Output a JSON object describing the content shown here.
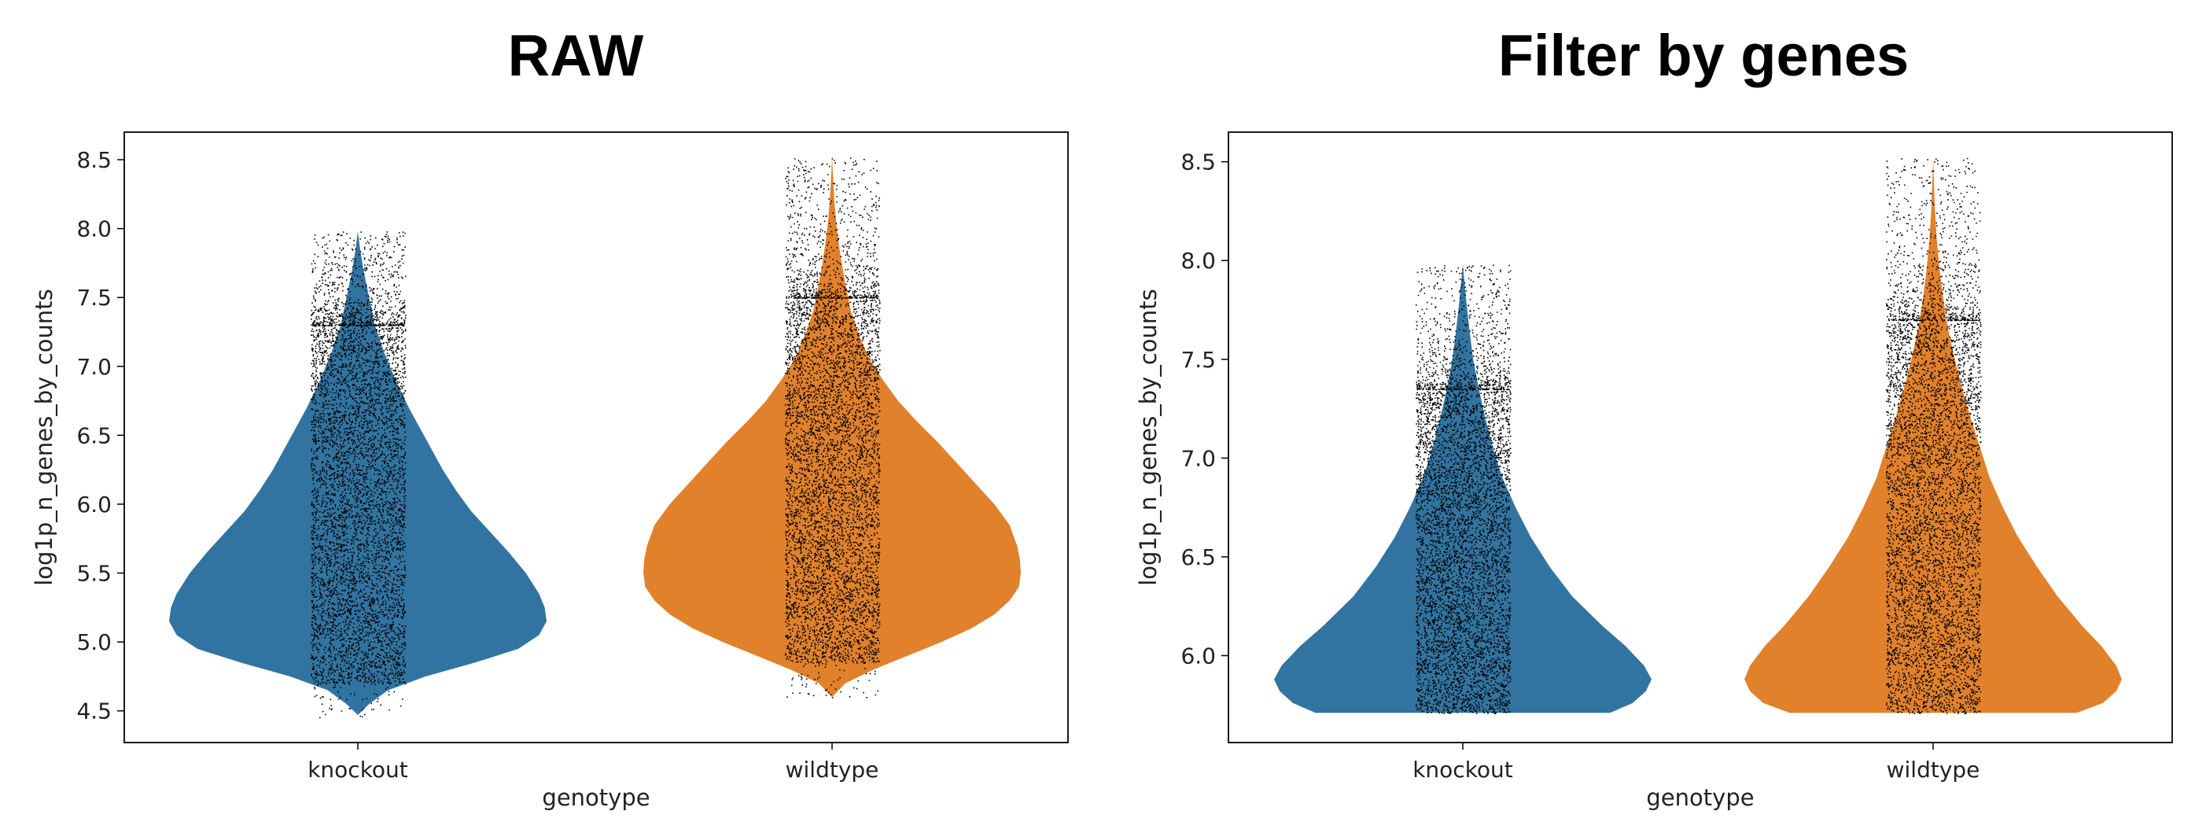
{
  "chart_data": [
    {
      "type": "violin",
      "title": "RAW",
      "xlabel": "genotype",
      "ylabel": "log1p_n_genes_by_counts",
      "categories": [
        "knockout",
        "wildtype"
      ],
      "yticks": [
        4.5,
        5.0,
        5.5,
        6.0,
        6.5,
        7.0,
        7.5,
        8.0,
        8.5
      ],
      "ylim": [
        4.27,
        8.7
      ],
      "series": [
        {
          "category": "knockout",
          "color": "#3274a1",
          "min": 4.45,
          "max": 7.98,
          "profile": [
            [
              4.47,
              0.0
            ],
            [
              4.55,
              0.06
            ],
            [
              4.65,
              0.16
            ],
            [
              4.75,
              0.36
            ],
            [
              4.85,
              0.62
            ],
            [
              4.95,
              0.85
            ],
            [
              5.05,
              0.96
            ],
            [
              5.15,
              1.0
            ],
            [
              5.25,
              0.99
            ],
            [
              5.35,
              0.96
            ],
            [
              5.5,
              0.89
            ],
            [
              5.65,
              0.8
            ],
            [
              5.8,
              0.7
            ],
            [
              5.95,
              0.6
            ],
            [
              6.1,
              0.52
            ],
            [
              6.25,
              0.45
            ],
            [
              6.4,
              0.39
            ],
            [
              6.55,
              0.33
            ],
            [
              6.7,
              0.27
            ],
            [
              6.9,
              0.2
            ],
            [
              7.1,
              0.14
            ],
            [
              7.3,
              0.09
            ],
            [
              7.5,
              0.06
            ],
            [
              7.7,
              0.03
            ],
            [
              7.85,
              0.012
            ],
            [
              7.98,
              0.0
            ]
          ],
          "points": {
            "box_lo": 4.7,
            "box_hi": 7.3,
            "tail_max": 7.98
          }
        },
        {
          "category": "wildtype",
          "color": "#e1812c",
          "min": 4.6,
          "max": 8.52,
          "profile": [
            [
              4.6,
              0.0
            ],
            [
              4.7,
              0.07
            ],
            [
              4.8,
              0.22
            ],
            [
              4.9,
              0.4
            ],
            [
              5.0,
              0.58
            ],
            [
              5.1,
              0.74
            ],
            [
              5.2,
              0.86
            ],
            [
              5.3,
              0.94
            ],
            [
              5.4,
              0.99
            ],
            [
              5.5,
              1.0
            ],
            [
              5.6,
              0.995
            ],
            [
              5.7,
              0.98
            ],
            [
              5.85,
              0.94
            ],
            [
              6.0,
              0.86
            ],
            [
              6.15,
              0.76
            ],
            [
              6.3,
              0.66
            ],
            [
              6.45,
              0.56
            ],
            [
              6.6,
              0.45
            ],
            [
              6.75,
              0.35
            ],
            [
              6.9,
              0.27
            ],
            [
              7.05,
              0.2
            ],
            [
              7.2,
              0.15
            ],
            [
              7.4,
              0.1
            ],
            [
              7.6,
              0.07
            ],
            [
              7.8,
              0.045
            ],
            [
              8.0,
              0.025
            ],
            [
              8.2,
              0.012
            ],
            [
              8.4,
              0.004
            ],
            [
              8.52,
              0.0
            ]
          ],
          "points": {
            "box_lo": 4.85,
            "box_hi": 7.5,
            "tail_max": 8.52
          }
        }
      ]
    },
    {
      "type": "violin",
      "title": "Filter by genes",
      "xlabel": "genotype",
      "ylabel": "log1p_n_genes_by_counts",
      "categories": [
        "knockout",
        "wildtype"
      ],
      "yticks": [
        6.0,
        6.5,
        7.0,
        7.5,
        8.0,
        8.5
      ],
      "ylim": [
        5.56,
        8.65
      ],
      "series": [
        {
          "category": "knockout",
          "color": "#3274a1",
          "min": 5.71,
          "max": 7.98,
          "profile": [
            [
              5.71,
              0.78
            ],
            [
              5.76,
              0.9
            ],
            [
              5.82,
              0.97
            ],
            [
              5.88,
              1.0
            ],
            [
              5.95,
              0.96
            ],
            [
              6.05,
              0.86
            ],
            [
              6.15,
              0.74
            ],
            [
              6.3,
              0.58
            ],
            [
              6.45,
              0.46
            ],
            [
              6.6,
              0.36
            ],
            [
              6.75,
              0.28
            ],
            [
              6.9,
              0.21
            ],
            [
              7.05,
              0.16
            ],
            [
              7.2,
              0.12
            ],
            [
              7.35,
              0.085
            ],
            [
              7.5,
              0.055
            ],
            [
              7.65,
              0.035
            ],
            [
              7.8,
              0.018
            ],
            [
              7.9,
              0.008
            ],
            [
              7.98,
              0.0
            ]
          ],
          "points": {
            "box_lo": 5.71,
            "box_hi": 7.35,
            "tail_max": 7.98
          }
        },
        {
          "category": "wildtype",
          "color": "#e1812c",
          "min": 5.71,
          "max": 8.52,
          "profile": [
            [
              5.71,
              0.76
            ],
            [
              5.76,
              0.9
            ],
            [
              5.82,
              0.97
            ],
            [
              5.88,
              1.0
            ],
            [
              5.95,
              0.97
            ],
            [
              6.05,
              0.89
            ],
            [
              6.15,
              0.79
            ],
            [
              6.3,
              0.66
            ],
            [
              6.45,
              0.55
            ],
            [
              6.6,
              0.45
            ],
            [
              6.75,
              0.37
            ],
            [
              6.9,
              0.3
            ],
            [
              7.05,
              0.25
            ],
            [
              7.2,
              0.2
            ],
            [
              7.35,
              0.155
            ],
            [
              7.5,
              0.115
            ],
            [
              7.65,
              0.08
            ],
            [
              7.8,
              0.055
            ],
            [
              7.95,
              0.035
            ],
            [
              8.1,
              0.02
            ],
            [
              8.25,
              0.01
            ],
            [
              8.4,
              0.004
            ],
            [
              8.52,
              0.0
            ]
          ],
          "points": {
            "box_lo": 5.71,
            "box_hi": 7.7,
            "tail_max": 8.52
          }
        }
      ]
    }
  ]
}
